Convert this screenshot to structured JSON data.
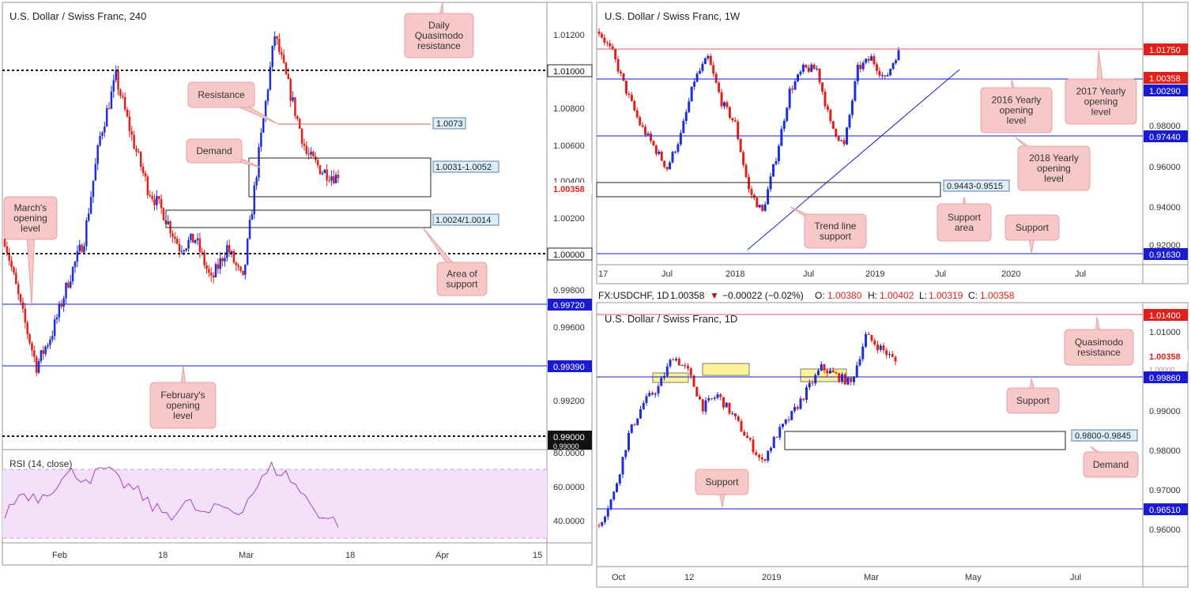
{
  "colors": {
    "bull": "#1f2fd6",
    "bear": "#e0201b",
    "hline": "#1a1ad1",
    "redline": "#e05555",
    "rsi_line": "#a543c2",
    "rsi_fill": "#f3e1fa",
    "note_bg": "#f6c8c8",
    "note_border": "#e7a3a3",
    "zone_yellow": "#fbf39a"
  },
  "left": {
    "title": "U.S. Dollar / Swiss Franc, 240",
    "y_ticks": [
      "1.01200",
      "1.00800",
      "1.00600",
      "1.00400",
      "1.00200",
      "0.99800",
      "0.99600",
      "0.99200"
    ],
    "level_labels": [
      {
        "text": "1.01000",
        "style": "white"
      },
      {
        "text": "1.00358",
        "style": "red"
      },
      {
        "text": "1.00000",
        "style": "white"
      },
      {
        "text": "0.99720",
        "style": "blue"
      },
      {
        "text": "0.99390",
        "style": "blue"
      },
      {
        "text": "0.99000",
        "style": "black"
      },
      {
        "text": "0.99000",
        "style": "overlap"
      }
    ],
    "x_ticks": [
      "Feb",
      "18",
      "Mar",
      "18",
      "Apr",
      "15"
    ],
    "annotations": [
      "Daily\nQuasimodo\nresistance",
      "Resistance",
      "Demand",
      "March's\nopening\nlevel",
      "Area of\nsupport",
      "February's\nopening\nlevel"
    ],
    "boxes": [
      "1.0073",
      "1.0031-1.0052",
      "1.0024/1.0014"
    ],
    "rsi": {
      "label": "RSI (14, close)",
      "ticks": [
        "80.0000",
        "60.0000",
        "40.0000"
      ]
    }
  },
  "right_top": {
    "title": "U.S. Dollar / Swiss Franc, 1W",
    "y_ticks": [
      "0.98000",
      "0.96000",
      "0.94000",
      "0.92000"
    ],
    "level_labels": [
      {
        "text": "1.01750",
        "style": "red"
      },
      {
        "text": "1.00358",
        "style": "red"
      },
      {
        "text": "1.00290",
        "style": "blue"
      },
      {
        "text": "0.97440",
        "style": "blue"
      },
      {
        "text": "0.91630",
        "style": "blue"
      }
    ],
    "x_ticks": [
      "17",
      "Jul",
      "2018",
      "Jul",
      "2019",
      "Jul",
      "2020",
      "Jul"
    ],
    "annotations": [
      "2016 Yearly\nopening\nlevel",
      "2017 Yearly\nopening\nlevel",
      "2018 Yearly\nopening\nlevel",
      "Support\narea",
      "Trend line\nsupport",
      "Support"
    ],
    "boxes": [
      "0.9443-0.9515"
    ]
  },
  "info_bar": {
    "symbol": "FX:USDCHF, 1D",
    "price": "1.00358",
    "arrow": "▼",
    "change": "−0.00022 (−0.02%)",
    "o_label": "O:",
    "o": "1.00380",
    "h_label": "H:",
    "h": "1.00402",
    "l_label": "L:",
    "l": "1.00319",
    "c_label": "C:",
    "c": "1.00358"
  },
  "right_bottom": {
    "title": "U.S. Dollar / Swiss Franc, 1D",
    "y_ticks": [
      "1.01000",
      "0.99000",
      "0.98000",
      "0.97000",
      "0.96000"
    ],
    "level_labels": [
      {
        "text": "1.01400",
        "style": "red"
      },
      {
        "text": "1.00358",
        "style": "red"
      },
      {
        "text": "1.00000",
        "style": "faded"
      },
      {
        "text": "0.99860",
        "style": "blue"
      },
      {
        "text": "0.96510",
        "style": "blue"
      }
    ],
    "x_ticks": [
      "Oct",
      "12",
      "2019",
      "Mar",
      "May",
      "Jul"
    ],
    "annotations": [
      "Quasimodo\nresistance",
      "Support",
      "Demand",
      "Support"
    ],
    "boxes": [
      "0.9800-0.9845"
    ]
  },
  "chart_data": [
    {
      "type": "candlestick",
      "title": "U.S. Dollar / Swiss Franc, 240",
      "ylim": [
        0.988,
        1.0135
      ],
      "x_ticks": [
        "Feb",
        "18",
        "Mar",
        "18",
        "Apr",
        "15"
      ],
      "close_points": [
        1.0,
        0.996,
        0.9925,
        0.9945,
        0.9975,
        1.0,
        1.006,
        1.0095,
        1.006,
        1.003,
        1.0015,
        0.9995,
        1.0,
        0.9975,
        0.9995,
        0.9975,
        1.005,
        1.012,
        1.0085,
        1.005,
        1.004,
        1.00358
      ],
      "levels": [
        1.01,
        1.0,
        0.9972,
        0.9939,
        0.99,
        1.0073
      ],
      "zones": [
        [
          1.0031,
          1.0052
        ],
        [
          1.0014,
          1.0024
        ]
      ],
      "last": 1.00358
    },
    {
      "type": "line",
      "title": "RSI (14, close)",
      "ylim": [
        30,
        80
      ],
      "y_ticks": [
        80,
        60,
        40
      ],
      "values": [
        45,
        58,
        55,
        62,
        70,
        66,
        72,
        64,
        58,
        48,
        45,
        52,
        44,
        50,
        46,
        60,
        73,
        68,
        55,
        44,
        40
      ]
    },
    {
      "type": "candlestick",
      "title": "U.S. Dollar / Swiss Franc, 1W",
      "ylim": [
        0.908,
        1.022
      ],
      "x_ticks": [
        "17",
        "Jul",
        "2018",
        "Jul",
        "2019",
        "Jul",
        "2020",
        "Jul"
      ],
      "close_points": [
        1.012,
        1.002,
        0.985,
        0.97,
        0.96,
        0.95,
        0.965,
        0.99,
        1.0,
        0.98,
        0.97,
        0.94,
        0.93,
        0.955,
        0.985,
        0.995,
        0.995,
        0.97,
        0.96,
        0.995,
        1.0,
        0.99,
        1.00358
      ],
      "levels": [
        1.0175,
        1.0029,
        0.9744,
        0.9163
      ],
      "zones": [
        [
          0.9443,
          0.9515
        ]
      ],
      "last": 1.00358
    },
    {
      "type": "candlestick",
      "title": "U.S. Dollar / Swiss Franc, 1D",
      "ylim": [
        0.9525,
        1.0175
      ],
      "x_ticks": [
        "Oct",
        "12",
        "2019",
        "Mar",
        "May",
        "Jul"
      ],
      "close_points": [
        0.962,
        0.97,
        0.985,
        0.993,
        0.997,
        1.005,
        1.001,
        0.992,
        0.995,
        0.99,
        0.984,
        0.978,
        0.985,
        0.99,
        0.996,
        1.002,
        1.0,
        0.998,
        1.01,
        1.007,
        1.00358
      ],
      "levels": [
        1.014,
        0.9986,
        0.9651
      ],
      "zones": [
        [
          0.98,
          0.9845
        ]
      ],
      "last": 1.00358
    }
  ]
}
